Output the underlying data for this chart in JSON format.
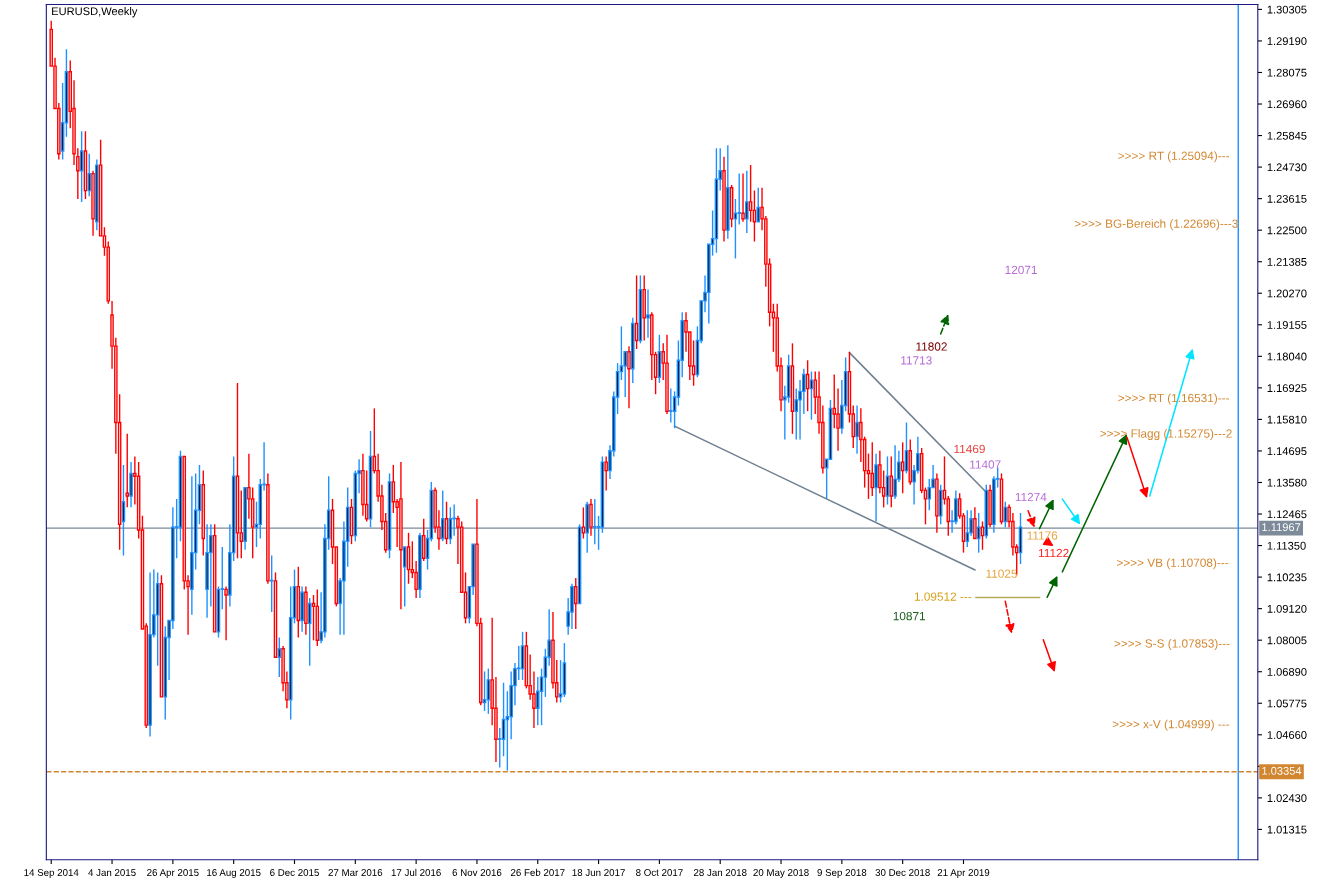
{
  "chart_data": {
    "type": "candlestick",
    "title": "EURUSD,Weekly",
    "x": [
      "2014-09-14",
      "2014-09-21",
      "2014-09-28",
      "2014-10-05",
      "2014-10-12",
      "2014-10-19",
      "2014-10-26",
      "2014-11-02",
      "2014-11-09",
      "2014-11-16",
      "2014-11-23",
      "2014-11-30",
      "2014-12-07",
      "2014-12-14",
      "2014-12-21",
      "2014-12-28",
      "2015-01-04",
      "2015-01-11",
      "2015-01-18",
      "2015-01-25",
      "2015-02-01",
      "2015-02-08",
      "2015-02-15",
      "2015-02-22",
      "2015-03-01",
      "2015-03-08",
      "2015-03-15",
      "2015-03-22",
      "2015-03-29",
      "2015-04-05",
      "2015-04-12",
      "2015-04-19",
      "2015-04-26",
      "2015-05-03",
      "2015-05-10",
      "2015-05-17",
      "2015-05-24",
      "2015-05-31",
      "2015-06-07",
      "2015-06-14",
      "2015-06-21",
      "2015-06-28",
      "2015-07-05",
      "2015-07-12",
      "2015-07-19",
      "2015-07-26",
      "2015-08-02",
      "2015-08-09",
      "2015-08-16",
      "2015-08-23",
      "2015-08-30",
      "2015-09-06",
      "2015-09-13",
      "2015-09-20",
      "2015-09-27",
      "2015-10-04",
      "2015-10-11",
      "2015-10-18",
      "2015-10-25",
      "2015-11-01",
      "2015-11-08",
      "2015-11-15",
      "2015-11-22",
      "2015-11-29",
      "2015-12-06",
      "2015-12-13",
      "2015-12-20",
      "2015-12-27",
      "2016-01-03",
      "2016-01-10",
      "2016-01-17",
      "2016-01-24",
      "2016-01-31",
      "2016-02-07",
      "2016-02-14",
      "2016-02-21",
      "2016-02-28",
      "2016-03-06",
      "2016-03-13",
      "2016-03-20",
      "2016-03-27",
      "2016-04-03",
      "2016-04-10",
      "2016-04-17",
      "2016-04-24",
      "2016-05-01",
      "2016-05-08",
      "2016-05-15",
      "2016-05-22",
      "2016-05-29",
      "2016-06-05",
      "2016-06-12",
      "2016-06-19",
      "2016-06-26",
      "2016-07-03",
      "2016-07-10",
      "2016-07-17",
      "2016-07-24",
      "2016-07-31",
      "2016-08-07",
      "2016-08-14",
      "2016-08-21",
      "2016-08-28",
      "2016-09-04",
      "2016-09-11",
      "2016-09-18",
      "2016-09-25",
      "2016-10-02",
      "2016-10-09",
      "2016-10-16",
      "2016-10-23",
      "2016-10-30",
      "2016-11-06",
      "2016-11-13",
      "2016-11-20",
      "2016-11-27",
      "2016-12-04",
      "2016-12-11",
      "2016-12-18",
      "2016-12-25",
      "2017-01-01",
      "2017-01-08",
      "2017-01-15",
      "2017-01-22",
      "2017-01-29",
      "2017-02-05",
      "2017-02-12",
      "2017-02-19",
      "2017-02-26",
      "2017-03-05",
      "2017-03-12",
      "2017-03-19",
      "2017-03-26",
      "2017-04-02",
      "2017-04-09",
      "2017-04-16",
      "2017-04-23",
      "2017-04-30",
      "2017-05-07",
      "2017-05-14",
      "2017-05-21",
      "2017-05-28",
      "2017-06-04",
      "2017-06-11",
      "2017-06-18",
      "2017-06-25",
      "2017-07-02",
      "2017-07-09",
      "2017-07-16",
      "2017-07-23",
      "2017-07-30",
      "2017-08-06",
      "2017-08-13",
      "2017-08-20",
      "2017-08-27",
      "2017-09-03",
      "2017-09-10",
      "2017-09-17",
      "2017-09-24",
      "2017-10-01",
      "2017-10-08",
      "2017-10-15",
      "2017-10-22",
      "2017-10-29",
      "2017-11-05",
      "2017-11-12",
      "2017-11-19",
      "2017-11-26",
      "2017-12-03",
      "2017-12-10",
      "2017-12-17",
      "2017-12-24",
      "2017-12-31",
      "2018-01-07",
      "2018-01-14",
      "2018-01-21",
      "2018-01-28",
      "2018-02-04",
      "2018-02-11",
      "2018-02-18",
      "2018-02-25",
      "2018-03-04",
      "2018-03-11",
      "2018-03-18",
      "2018-03-25",
      "2018-04-01",
      "2018-04-08",
      "2018-04-15",
      "2018-04-22",
      "2018-04-29",
      "2018-05-06",
      "2018-05-13",
      "2018-05-20",
      "2018-05-27",
      "2018-06-03",
      "2018-06-10",
      "2018-06-17",
      "2018-06-24",
      "2018-07-01",
      "2018-07-08",
      "2018-07-15",
      "2018-07-22",
      "2018-07-29",
      "2018-08-05",
      "2018-08-12",
      "2018-08-19",
      "2018-08-26",
      "2018-09-02",
      "2018-09-09",
      "2018-09-16",
      "2018-09-23",
      "2018-09-30",
      "2018-10-07",
      "2018-10-14",
      "2018-10-21",
      "2018-10-28",
      "2018-11-04",
      "2018-11-11",
      "2018-11-18",
      "2018-11-25",
      "2018-12-02",
      "2018-12-09",
      "2018-12-16",
      "2018-12-23",
      "2018-12-30",
      "2019-01-06",
      "2019-01-13",
      "2019-01-20",
      "2019-01-27",
      "2019-02-03",
      "2019-02-10",
      "2019-02-17",
      "2019-02-24",
      "2019-03-03",
      "2019-03-10",
      "2019-03-17",
      "2019-03-24",
      "2019-03-31",
      "2019-04-07",
      "2019-04-14",
      "2019-04-21",
      "2019-04-28",
      "2019-05-05",
      "2019-05-12",
      "2019-05-19",
      "2019-05-26",
      "2019-06-02",
      "2019-06-09",
      "2019-06-16",
      "2019-06-23",
      "2019-06-30",
      "2019-07-07",
      "2019-07-14",
      "2019-07-21",
      "2019-07-28",
      "2019-08-04"
    ],
    "ohlc": [
      [
        1.296,
        1.299,
        1.283,
        1.283
      ],
      [
        1.283,
        1.286,
        1.268,
        1.268
      ],
      [
        1.268,
        1.27,
        1.25,
        1.252
      ],
      [
        1.253,
        1.277,
        1.25,
        1.263
      ],
      [
        1.263,
        1.289,
        1.258,
        1.281
      ],
      [
        1.281,
        1.285,
        1.261,
        1.267
      ],
      [
        1.268,
        1.278,
        1.248,
        1.252
      ],
      [
        1.251,
        1.254,
        1.236,
        1.246
      ],
      [
        1.246,
        1.26,
        1.235,
        1.253
      ],
      [
        1.253,
        1.26,
        1.236,
        1.239
      ],
      [
        1.239,
        1.252,
        1.237,
        1.245
      ],
      [
        1.245,
        1.246,
        1.223,
        1.229
      ],
      [
        1.228,
        1.25,
        1.225,
        1.248
      ],
      [
        1.248,
        1.257,
        1.223,
        1.223
      ],
      [
        1.223,
        1.226,
        1.216,
        1.219
      ],
      [
        1.219,
        1.221,
        1.199,
        1.2
      ],
      [
        1.195,
        1.2,
        1.176,
        1.184
      ],
      [
        1.184,
        1.187,
        1.146,
        1.157
      ],
      [
        1.157,
        1.167,
        1.112,
        1.121
      ],
      [
        1.122,
        1.142,
        1.11,
        1.129
      ],
      [
        1.132,
        1.153,
        1.127,
        1.131
      ],
      [
        1.131,
        1.143,
        1.127,
        1.139
      ],
      [
        1.139,
        1.145,
        1.128,
        1.138
      ],
      [
        1.138,
        1.143,
        1.116,
        1.119
      ],
      [
        1.119,
        1.124,
        1.084,
        1.084
      ],
      [
        1.085,
        1.086,
        1.049,
        1.05
      ],
      [
        1.05,
        1.104,
        1.046,
        1.082
      ],
      [
        1.082,
        1.105,
        1.081,
        1.089
      ],
      [
        1.089,
        1.104,
        1.071,
        1.1
      ],
      [
        1.1,
        1.103,
        1.06,
        1.06
      ],
      [
        1.06,
        1.085,
        1.052,
        1.081
      ],
      [
        1.081,
        1.087,
        1.066,
        1.087
      ],
      [
        1.087,
        1.127,
        1.084,
        1.12
      ],
      [
        1.12,
        1.13,
        1.109,
        1.12
      ],
      [
        1.12,
        1.147,
        1.115,
        1.145
      ],
      [
        1.145,
        1.145,
        1.098,
        1.101
      ],
      [
        1.101,
        1.103,
        1.082,
        1.099
      ],
      [
        1.098,
        1.138,
        1.089,
        1.111
      ],
      [
        1.111,
        1.139,
        1.105,
        1.126
      ],
      [
        1.126,
        1.142,
        1.121,
        1.135
      ],
      [
        1.135,
        1.14,
        1.11,
        1.116
      ],
      [
        1.098,
        1.121,
        1.088,
        1.111
      ],
      [
        1.111,
        1.121,
        1.092,
        1.117
      ],
      [
        1.117,
        1.121,
        1.083,
        1.083
      ],
      [
        1.083,
        1.099,
        1.081,
        1.098
      ],
      [
        1.098,
        1.113,
        1.091,
        1.098
      ],
      [
        1.098,
        1.099,
        1.08,
        1.096
      ],
      [
        1.096,
        1.121,
        1.092,
        1.111
      ],
      [
        1.111,
        1.145,
        1.108,
        1.138
      ],
      [
        1.138,
        1.171,
        1.109,
        1.118
      ],
      [
        1.118,
        1.133,
        1.109,
        1.115
      ],
      [
        1.115,
        1.134,
        1.112,
        1.134
      ],
      [
        1.134,
        1.146,
        1.123,
        1.13
      ],
      [
        1.13,
        1.134,
        1.109,
        1.12
      ],
      [
        1.12,
        1.129,
        1.113,
        1.121
      ],
      [
        1.121,
        1.137,
        1.116,
        1.135
      ],
      [
        1.135,
        1.15,
        1.133,
        1.135
      ],
      [
        1.135,
        1.139,
        1.1,
        1.101
      ],
      [
        1.101,
        1.11,
        1.09,
        1.101
      ],
      [
        1.101,
        1.104,
        1.074,
        1.074
      ],
      [
        1.074,
        1.081,
        1.067,
        1.077
      ],
      [
        1.077,
        1.078,
        1.062,
        1.065
      ],
      [
        1.065,
        1.069,
        1.056,
        1.059
      ],
      [
        1.059,
        1.099,
        1.052,
        1.088
      ],
      [
        1.088,
        1.105,
        1.086,
        1.099
      ],
      [
        1.099,
        1.106,
        1.081,
        1.087
      ],
      [
        1.087,
        1.099,
        1.083,
        1.097
      ],
      [
        1.097,
        1.099,
        1.082,
        1.086
      ],
      [
        1.086,
        1.095,
        1.071,
        1.093
      ],
      [
        1.093,
        1.096,
        1.08,
        1.092
      ],
      [
        1.092,
        1.098,
        1.078,
        1.08
      ],
      [
        1.08,
        1.097,
        1.079,
        1.083
      ],
      [
        1.083,
        1.121,
        1.081,
        1.116
      ],
      [
        1.116,
        1.138,
        1.112,
        1.126
      ],
      [
        1.126,
        1.13,
        1.107,
        1.113
      ],
      [
        1.113,
        1.113,
        1.092,
        1.093
      ],
      [
        1.093,
        1.102,
        1.082,
        1.101
      ],
      [
        1.101,
        1.122,
        1.082,
        1.115
      ],
      [
        1.115,
        1.134,
        1.106,
        1.127
      ],
      [
        1.127,
        1.13,
        1.114,
        1.117
      ],
      [
        1.117,
        1.14,
        1.115,
        1.139
      ],
      [
        1.139,
        1.144,
        1.132,
        1.14
      ],
      [
        1.14,
        1.146,
        1.124,
        1.128
      ],
      [
        1.128,
        1.14,
        1.122,
        1.123
      ],
      [
        1.123,
        1.154,
        1.12,
        1.145
      ],
      [
        1.145,
        1.162,
        1.139,
        1.14
      ],
      [
        1.14,
        1.146,
        1.129,
        1.131
      ],
      [
        1.131,
        1.135,
        1.119,
        1.122
      ],
      [
        1.122,
        1.125,
        1.111,
        1.112
      ],
      [
        1.112,
        1.139,
        1.109,
        1.136
      ],
      [
        1.136,
        1.142,
        1.125,
        1.129
      ],
      [
        1.129,
        1.13,
        1.113,
        1.127
      ],
      [
        1.13,
        1.143,
        1.091,
        1.112
      ],
      [
        1.106,
        1.113,
        1.092,
        1.113
      ],
      [
        1.113,
        1.118,
        1.1,
        1.105
      ],
      [
        1.105,
        1.115,
        1.102,
        1.104
      ],
      [
        1.104,
        1.108,
        1.095,
        1.098
      ],
      [
        1.098,
        1.118,
        1.095,
        1.117
      ],
      [
        1.117,
        1.123,
        1.108,
        1.109
      ],
      [
        1.109,
        1.119,
        1.105,
        1.116
      ],
      [
        1.116,
        1.136,
        1.115,
        1.133
      ],
      [
        1.133,
        1.134,
        1.118,
        1.12
      ],
      [
        1.12,
        1.126,
        1.112,
        1.116
      ],
      [
        1.116,
        1.133,
        1.115,
        1.123
      ],
      [
        1.123,
        1.129,
        1.114,
        1.116
      ],
      [
        1.116,
        1.127,
        1.114,
        1.123
      ],
      [
        1.123,
        1.128,
        1.117,
        1.123
      ],
      [
        1.123,
        1.124,
        1.107,
        1.12
      ],
      [
        1.12,
        1.122,
        1.097,
        1.097
      ],
      [
        1.097,
        1.104,
        1.086,
        1.088
      ],
      [
        1.088,
        1.099,
        1.086,
        1.099
      ],
      [
        1.099,
        1.114,
        1.096,
        1.114
      ],
      [
        1.114,
        1.13,
        1.085,
        1.086
      ],
      [
        1.086,
        1.088,
        1.057,
        1.058
      ],
      [
        1.058,
        1.069,
        1.055,
        1.059
      ],
      [
        1.059,
        1.07,
        1.054,
        1.066
      ],
      [
        1.066,
        1.088,
        1.05,
        1.056
      ],
      [
        1.056,
        1.067,
        1.037,
        1.045
      ],
      [
        1.045,
        1.049,
        1.035,
        1.045
      ],
      [
        1.045,
        1.065,
        1.039,
        1.052
      ],
      [
        1.052,
        1.062,
        1.034,
        1.053
      ],
      [
        1.053,
        1.069,
        1.045,
        1.064
      ],
      [
        1.064,
        1.072,
        1.057,
        1.07
      ],
      [
        1.07,
        1.078,
        1.066,
        1.07
      ],
      [
        1.07,
        1.083,
        1.066,
        1.078
      ],
      [
        1.078,
        1.083,
        1.063,
        1.064
      ],
      [
        1.064,
        1.075,
        1.059,
        1.061
      ],
      [
        1.061,
        1.069,
        1.049,
        1.056
      ],
      [
        1.056,
        1.067,
        1.05,
        1.062
      ],
      [
        1.062,
        1.07,
        1.05,
        1.067
      ],
      [
        1.067,
        1.077,
        1.06,
        1.074
      ],
      [
        1.074,
        1.091,
        1.071,
        1.08
      ],
      [
        1.08,
        1.09,
        1.063,
        1.065
      ],
      [
        1.065,
        1.073,
        1.058,
        1.06
      ],
      [
        1.06,
        1.073,
        1.058,
        1.061
      ],
      [
        1.061,
        1.079,
        1.06,
        1.072
      ],
      [
        1.085,
        1.095,
        1.082,
        1.09
      ],
      [
        1.09,
        1.1,
        1.084,
        1.099
      ],
      [
        1.099,
        1.102,
        1.084,
        1.093
      ],
      [
        1.093,
        1.121,
        1.093,
        1.12
      ],
      [
        1.12,
        1.127,
        1.116,
        1.118
      ],
      [
        1.118,
        1.129,
        1.111,
        1.128
      ],
      [
        1.128,
        1.13,
        1.117,
        1.12
      ],
      [
        1.12,
        1.13,
        1.114,
        1.12
      ],
      [
        1.12,
        1.124,
        1.112,
        1.12
      ],
      [
        1.12,
        1.145,
        1.118,
        1.143
      ],
      [
        1.143,
        1.145,
        1.133,
        1.14
      ],
      [
        1.14,
        1.149,
        1.137,
        1.147
      ],
      [
        1.147,
        1.168,
        1.145,
        1.166
      ],
      [
        1.166,
        1.178,
        1.16,
        1.175
      ],
      [
        1.175,
        1.191,
        1.172,
        1.177
      ],
      [
        1.177,
        1.182,
        1.166,
        1.182
      ],
      [
        1.182,
        1.184,
        1.162,
        1.176
      ],
      [
        1.176,
        1.194,
        1.171,
        1.192
      ],
      [
        1.192,
        1.209,
        1.183,
        1.186
      ],
      [
        1.186,
        1.209,
        1.185,
        1.204
      ],
      [
        1.204,
        1.209,
        1.186,
        1.194
      ],
      [
        1.194,
        1.204,
        1.187,
        1.195
      ],
      [
        1.195,
        1.196,
        1.172,
        1.181
      ],
      [
        1.181,
        1.182,
        1.167,
        1.173
      ],
      [
        1.173,
        1.188,
        1.171,
        1.182
      ],
      [
        1.182,
        1.185,
        1.172,
        1.178
      ],
      [
        1.178,
        1.188,
        1.16,
        1.161
      ],
      [
        1.161,
        1.169,
        1.157,
        1.161
      ],
      [
        1.161,
        1.168,
        1.155,
        1.166
      ],
      [
        1.166,
        1.186,
        1.163,
        1.179
      ],
      [
        1.179,
        1.196,
        1.173,
        1.193
      ],
      [
        1.193,
        1.196,
        1.182,
        1.189
      ],
      [
        1.189,
        1.189,
        1.172,
        1.177
      ],
      [
        1.177,
        1.186,
        1.17,
        1.174
      ],
      [
        1.174,
        1.191,
        1.173,
        1.186
      ],
      [
        1.186,
        1.2,
        1.185,
        1.2
      ],
      [
        1.2,
        1.209,
        1.196,
        1.203
      ],
      [
        1.203,
        1.22,
        1.192,
        1.22
      ],
      [
        1.22,
        1.232,
        1.216,
        1.222
      ],
      [
        1.222,
        1.254,
        1.217,
        1.243
      ],
      [
        1.243,
        1.254,
        1.239,
        1.246
      ],
      [
        1.246,
        1.251,
        1.221,
        1.225
      ],
      [
        1.225,
        1.255,
        1.222,
        1.24
      ],
      [
        1.24,
        1.241,
        1.226,
        1.229
      ],
      [
        1.229,
        1.236,
        1.215,
        1.231
      ],
      [
        1.231,
        1.245,
        1.227,
        1.231
      ],
      [
        1.231,
        1.245,
        1.228,
        1.229
      ],
      [
        1.229,
        1.246,
        1.224,
        1.235
      ],
      [
        1.235,
        1.248,
        1.228,
        1.232
      ],
      [
        1.232,
        1.239,
        1.221,
        1.228
      ],
      [
        1.228,
        1.24,
        1.228,
        1.233
      ],
      [
        1.233,
        1.24,
        1.225,
        1.229
      ],
      [
        1.229,
        1.23,
        1.205,
        1.213
      ],
      [
        1.213,
        1.215,
        1.191,
        1.196
      ],
      [
        1.196,
        1.199,
        1.182,
        1.194
      ],
      [
        1.194,
        1.199,
        1.175,
        1.177
      ],
      [
        1.177,
        1.18,
        1.161,
        1.165
      ],
      [
        1.165,
        1.17,
        1.151,
        1.166
      ],
      [
        1.166,
        1.181,
        1.164,
        1.177
      ],
      [
        1.177,
        1.185,
        1.153,
        1.161
      ],
      [
        1.161,
        1.169,
        1.151,
        1.165
      ],
      [
        1.165,
        1.172,
        1.151,
        1.168
      ],
      [
        1.168,
        1.176,
        1.16,
        1.174
      ],
      [
        1.174,
        1.179,
        1.161,
        1.169
      ],
      [
        1.169,
        1.175,
        1.158,
        1.172
      ],
      [
        1.172,
        1.175,
        1.16,
        1.166
      ],
      [
        1.166,
        1.175,
        1.153,
        1.157
      ],
      [
        1.157,
        1.163,
        1.139,
        1.141
      ],
      [
        1.141,
        1.144,
        1.13,
        1.144
      ],
      [
        1.144,
        1.165,
        1.144,
        1.162
      ],
      [
        1.162,
        1.174,
        1.155,
        1.16
      ],
      [
        1.16,
        1.169,
        1.147,
        1.155
      ],
      [
        1.155,
        1.172,
        1.153,
        1.163
      ],
      [
        1.163,
        1.18,
        1.161,
        1.175
      ],
      [
        1.175,
        1.182,
        1.157,
        1.16
      ],
      [
        1.16,
        1.163,
        1.148,
        1.152
      ],
      [
        1.152,
        1.163,
        1.146,
        1.157
      ],
      [
        1.157,
        1.162,
        1.143,
        1.151
      ],
      [
        1.151,
        1.152,
        1.134,
        1.14
      ],
      [
        1.14,
        1.146,
        1.13,
        1.139
      ],
      [
        1.139,
        1.15,
        1.131,
        1.134
      ],
      [
        1.134,
        1.146,
        1.122,
        1.142
      ],
      [
        1.142,
        1.147,
        1.132,
        1.134
      ],
      [
        1.134,
        1.14,
        1.127,
        1.131
      ],
      [
        1.131,
        1.145,
        1.128,
        1.138
      ],
      [
        1.138,
        1.145,
        1.127,
        1.131
      ],
      [
        1.131,
        1.149,
        1.13,
        1.137
      ],
      [
        1.137,
        1.147,
        1.136,
        1.143
      ],
      [
        1.143,
        1.15,
        1.132,
        1.14
      ],
      [
        1.14,
        1.157,
        1.139,
        1.147
      ],
      [
        1.147,
        1.151,
        1.135,
        1.136
      ],
      [
        1.136,
        1.142,
        1.128,
        1.14
      ],
      [
        1.14,
        1.152,
        1.139,
        1.146
      ],
      [
        1.146,
        1.148,
        1.132,
        1.133
      ],
      [
        1.133,
        1.134,
        1.121,
        1.13
      ],
      [
        1.13,
        1.137,
        1.126,
        1.134
      ],
      [
        1.134,
        1.142,
        1.134,
        1.137
      ],
      [
        1.137,
        1.139,
        1.118,
        1.124
      ],
      [
        1.124,
        1.135,
        1.121,
        1.133
      ],
      [
        1.133,
        1.145,
        1.128,
        1.13
      ],
      [
        1.13,
        1.131,
        1.117,
        1.122
      ],
      [
        1.122,
        1.126,
        1.118,
        1.122
      ],
      [
        1.122,
        1.133,
        1.121,
        1.13
      ],
      [
        1.13,
        1.132,
        1.123,
        1.124
      ],
      [
        1.124,
        1.125,
        1.111,
        1.115
      ],
      [
        1.115,
        1.126,
        1.113,
        1.118
      ],
      [
        1.118,
        1.126,
        1.117,
        1.123
      ],
      [
        1.123,
        1.127,
        1.116,
        1.116
      ],
      [
        1.116,
        1.125,
        1.111,
        1.12
      ],
      [
        1.12,
        1.122,
        1.112,
        1.117
      ],
      [
        1.117,
        1.135,
        1.116,
        1.133
      ],
      [
        1.133,
        1.135,
        1.12,
        1.121
      ],
      [
        1.121,
        1.138,
        1.118,
        1.137
      ],
      [
        1.137,
        1.141,
        1.134,
        1.137
      ],
      [
        1.137,
        1.139,
        1.121,
        1.122
      ],
      [
        1.122,
        1.129,
        1.12,
        1.127
      ],
      [
        1.127,
        1.128,
        1.12,
        1.122
      ],
      [
        1.122,
        1.125,
        1.11,
        1.113
      ],
      [
        1.113,
        1.114,
        1.103,
        1.111
      ],
      [
        1.111,
        1.125,
        1.107,
        1.12
      ]
    ],
    "colors": [
      "#ff0000",
      "#ff0000",
      "#ff0000",
      "#1e90ff",
      "#1e90ff",
      "#ff0000",
      "#ff0000",
      "#ff0000",
      "#1e90ff",
      "#ff0000",
      "#1e90ff",
      "#ff0000",
      "#1e90ff",
      "#ff0000",
      "#ff0000",
      "#ff0000",
      "#ff0000",
      "#ff0000",
      "#ff0000",
      "#1e90ff",
      "#ff0000",
      "#1e90ff",
      "#ff0000",
      "#ff0000",
      "#ff0000",
      "#ff0000",
      "#1e90ff",
      "#1e90ff",
      "#1e90ff",
      "#ff0000",
      "#1e90ff",
      "#1e90ff",
      "#1e90ff",
      "#1e90ff",
      "#1e90ff",
      "#ff0000",
      "#ff0000",
      "#1e90ff",
      "#1e90ff",
      "#1e90ff",
      "#ff0000",
      "#1e90ff",
      "#1e90ff",
      "#ff0000",
      "#1e90ff",
      "#1e90ff",
      "#ff0000",
      "#1e90ff",
      "#1e90ff",
      "#ff0000",
      "#ff0000",
      "#1e90ff",
      "#ff0000",
      "#ff0000",
      "#1e90ff",
      "#1e90ff",
      "#1e90ff",
      "#ff0000",
      "#1e90ff",
      "#ff0000",
      "#1e90ff",
      "#ff0000",
      "#ff0000",
      "#1e90ff",
      "#1e90ff",
      "#ff0000",
      "#1e90ff",
      "#ff0000",
      "#1e90ff",
      "#ff0000",
      "#ff0000",
      "#1e90ff",
      "#1e90ff",
      "#1e90ff",
      "#ff0000",
      "#ff0000",
      "#1e90ff",
      "#1e90ff",
      "#1e90ff",
      "#ff0000",
      "#1e90ff",
      "#1e90ff",
      "#ff0000",
      "#ff0000",
      "#1e90ff",
      "#ff0000",
      "#ff0000",
      "#ff0000",
      "#ff0000",
      "#1e90ff",
      "#ff0000",
      "#ff0000",
      "#ff0000",
      "#1e90ff",
      "#ff0000",
      "#ff0000",
      "#ff0000",
      "#1e90ff",
      "#ff0000",
      "#1e90ff",
      "#1e90ff",
      "#ff0000",
      "#ff0000",
      "#1e90ff",
      "#ff0000",
      "#1e90ff",
      "#1e90ff",
      "#ff0000",
      "#ff0000",
      "#ff0000",
      "#1e90ff",
      "#1e90ff",
      "#ff0000",
      "#ff0000",
      "#1e90ff",
      "#1e90ff",
      "#ff0000",
      "#ff0000",
      "#1e90ff",
      "#1e90ff",
      "#1e90ff",
      "#1e90ff",
      "#1e90ff",
      "#1e90ff",
      "#1e90ff",
      "#ff0000",
      "#ff0000",
      "#ff0000",
      "#1e90ff",
      "#1e90ff",
      "#1e90ff",
      "#1e90ff",
      "#ff0000",
      "#ff0000",
      "#1e90ff",
      "#1e90ff",
      "#1e90ff",
      "#1e90ff",
      "#ff0000",
      "#1e90ff",
      "#ff0000",
      "#1e90ff",
      "#ff0000",
      "#1e90ff",
      "#1e90ff",
      "#1e90ff",
      "#ff0000",
      "#1e90ff",
      "#1e90ff",
      "#1e90ff",
      "#1e90ff",
      "#1e90ff",
      "#ff0000",
      "#1e90ff",
      "#ff0000",
      "#1e90ff",
      "#ff0000",
      "#1e90ff",
      "#ff0000",
      "#ff0000",
      "#1e90ff",
      "#ff0000",
      "#ff0000",
      "#1e90ff",
      "#1e90ff",
      "#1e90ff",
      "#1e90ff",
      "#ff0000",
      "#ff0000",
      "#ff0000",
      "#1e90ff",
      "#1e90ff",
      "#1e90ff",
      "#1e90ff",
      "#1e90ff",
      "#1e90ff",
      "#1e90ff",
      "#ff0000",
      "#1e90ff",
      "#ff0000",
      "#1e90ff",
      "#1e90ff",
      "#ff0000",
      "#1e90ff",
      "#ff0000",
      "#ff0000",
      "#1e90ff",
      "#ff0000",
      "#ff0000",
      "#ff0000",
      "#ff0000",
      "#ff0000",
      "#ff0000",
      "#1e90ff",
      "#1e90ff",
      "#ff0000",
      "#1e90ff",
      "#1e90ff",
      "#1e90ff",
      "#ff0000",
      "#1e90ff",
      "#ff0000",
      "#ff0000",
      "#ff0000",
      "#1e90ff",
      "#1e90ff",
      "#ff0000",
      "#ff0000",
      "#1e90ff",
      "#1e90ff",
      "#ff0000",
      "#ff0000",
      "#1e90ff",
      "#ff0000",
      "#ff0000",
      "#ff0000",
      "#ff0000",
      "#1e90ff",
      "#ff0000",
      "#ff0000",
      "#1e90ff",
      "#ff0000",
      "#1e90ff",
      "#1e90ff",
      "#ff0000",
      "#1e90ff",
      "#ff0000",
      "#1e90ff",
      "#1e90ff",
      "#ff0000",
      "#ff0000",
      "#1e90ff",
      "#1e90ff",
      "#ff0000",
      "#1e90ff",
      "#ff0000",
      "#ff0000",
      "#1e90ff",
      "#1e90ff",
      "#ff0000",
      "#ff0000",
      "#1e90ff",
      "#1e90ff",
      "#ff0000",
      "#1e90ff",
      "#ff0000",
      "#1e90ff",
      "#ff0000",
      "#1e90ff",
      "#1e90ff",
      "#ff0000",
      "#1e90ff",
      "#ff0000",
      "#ff0000",
      "#ff0000",
      "#1e90ff"
    ],
    "series": [
      {
        "type": "line",
        "color": "#708090",
        "x": [
          "2018-09-23",
          "2019-05-31"
        ],
        "values": [
          1.1817,
          1.1327
        ],
        "line_style": "solid"
      },
      {
        "type": "line",
        "color": "#708090",
        "x": [
          "2017-11-05",
          "2019-05-12"
        ],
        "values": [
          1.1557,
          1.1049
        ],
        "line_style": "solid"
      },
      {
        "type": "line",
        "color": "#b5ac5a",
        "x": [
          "2019-05-14",
          "2019-09-08"
        ],
        "values": [
          1.0951,
          1.0951
        ],
        "line_style": "solid"
      }
    ],
    "xlim": [
      "2014-09-05",
      "2020-10-14"
    ],
    "xticks": [
      {
        "value": "2014-09-14",
        "label": "14 Sep 2014"
      },
      {
        "value": "2015-01-04",
        "label": "4 Jan 2015"
      },
      {
        "value": "2015-04-26",
        "label": "26 Apr 2015"
      },
      {
        "value": "2015-08-16",
        "label": "16 Aug 2015"
      },
      {
        "value": "2015-12-06",
        "label": "6 Dec 2015"
      },
      {
        "value": "2016-03-27",
        "label": "27 Mar 2016"
      },
      {
        "value": "2016-07-17",
        "label": "17 Jul 2016"
      },
      {
        "value": "2016-11-06",
        "label": "6 Nov 2016"
      },
      {
        "value": "2017-02-26",
        "label": "26 Feb 2017"
      },
      {
        "value": "2017-06-18",
        "label": "18 Jun 2017"
      },
      {
        "value": "2017-10-08",
        "label": "8 Oct 2017"
      },
      {
        "value": "2018-01-28",
        "label": "28 Jan 2018"
      },
      {
        "value": "2018-05-20",
        "label": "20 May 2018"
      },
      {
        "value": "2018-09-09",
        "label": "9 Sep 2018"
      },
      {
        "value": "2018-12-30",
        "label": "30 Dec 2018"
      },
      {
        "value": "2019-04-21",
        "label": "21 Apr 2019"
      }
    ],
    "ylim": [
      1.0024,
      1.3048
    ],
    "yticks": [
      1.30305,
      {
        "value": 1.2919,
        "label": "1.29190"
      },
      1.28075,
      {
        "value": 1.2696,
        "label": "1.26960"
      },
      1.25845,
      {
        "value": 1.2473,
        "label": "1.24730"
      },
      1.23615,
      {
        "value": 1.225,
        "label": "1.22500"
      },
      1.21385,
      {
        "value": 1.2027,
        "label": "1.20270"
      },
      1.19155,
      {
        "value": 1.1804,
        "label": "1.18040"
      },
      1.16925,
      {
        "value": 1.1581,
        "label": "1.15810"
      },
      1.14695,
      {
        "value": 1.1358,
        "label": "1.13580"
      },
      1.12465,
      {
        "value": 1.1135,
        "label": "1.11350"
      },
      1.10235,
      {
        "value": 1.0912,
        "label": "1.09120"
      },
      1.08005,
      {
        "value": 1.0689,
        "label": "1.06890"
      },
      1.05775,
      {
        "value": 1.0466,
        "label": "1.04660"
      },
      {
        "value": 1.03545,
        "label": null
      },
      {
        "value": 1.0243,
        "label": "1.02430"
      },
      1.01315
    ],
    "ref_lines": [
      {
        "axis": "y",
        "value": 1.11967,
        "label": "1.11967",
        "color": "#7d8a99",
        "line_style": "solid"
      },
      {
        "axis": "y",
        "value": 1.03354,
        "label": "1.03354",
        "color": "#d2862f",
        "line_style": "dashed"
      },
      {
        "axis": "x",
        "value": "2020-09-08",
        "color": "#1e90ff",
        "line_style": "solid"
      }
    ],
    "annotations": [
      ">>>> RT (1.25094)---",
      ">>>> BG-Bereich (1.22696)---3",
      ">>>> RT (1.16531)---",
      ">>>> Flagg (1.15275)---2",
      ">>>> VB (1.10708)---",
      ">>>> S-S (1.07853)---",
      ">>>> x-V (1.04999) ---",
      "12071",
      "11802",
      "11713",
      "11469",
      "11407",
      "11274",
      "11176",
      "11122",
      "11025",
      "10871",
      "1.09512 ---"
    ]
  }
}
